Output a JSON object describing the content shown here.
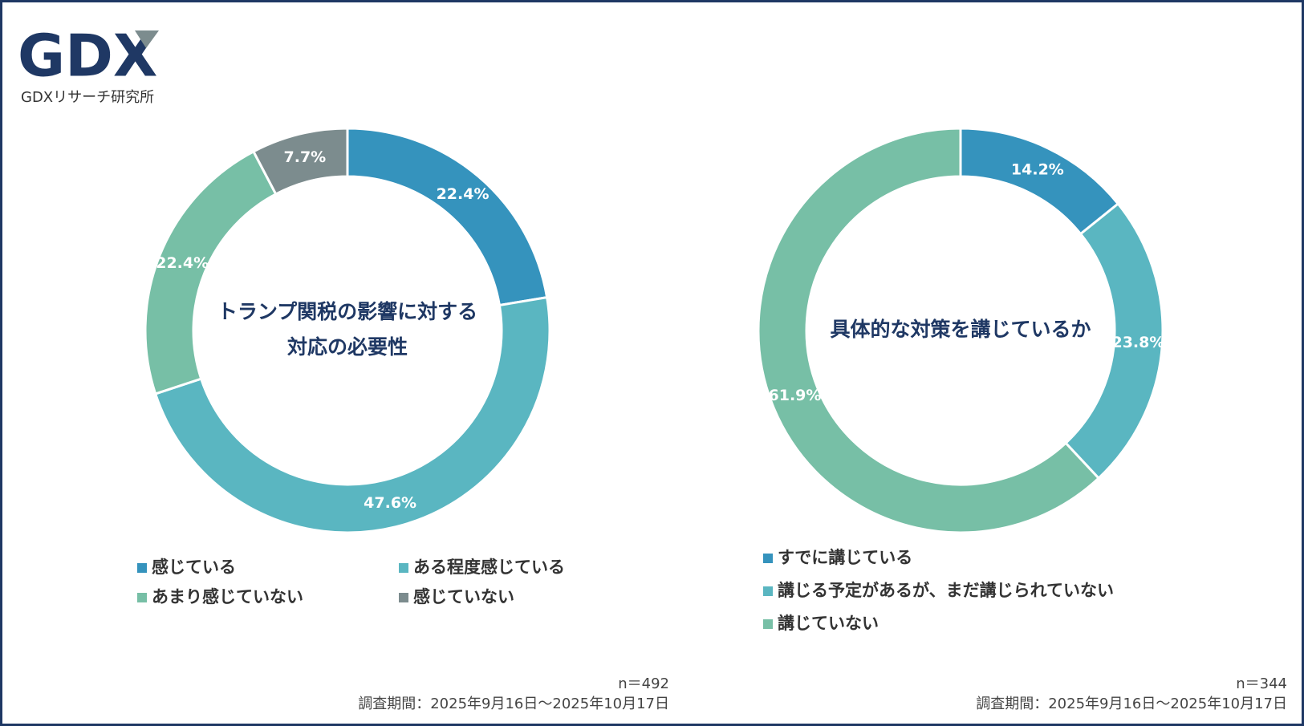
{
  "logo": {
    "mark": "GDX",
    "text": "GDXリサーチ研究所"
  },
  "chart_data": [
    {
      "type": "donut",
      "title": [
        "トランプ関税の影響に対する",
        "対応の必要性"
      ],
      "categories": [
        "感じている",
        "ある程度感じている",
        "あまり感じていない",
        "感じていない"
      ],
      "values": [
        22.4,
        47.6,
        22.4,
        7.7
      ],
      "value_labels": [
        "22.4%",
        "47.6%",
        "22.4%",
        "7.7%"
      ],
      "colors": [
        "#3593bd",
        "#5ab6c1",
        "#77bfa6",
        "#7c8c8e"
      ],
      "n": "n＝492",
      "period": "調査期間：2025年9月16日～2025年10月17日"
    },
    {
      "type": "donut",
      "title": [
        "具体的な対策を講じているか"
      ],
      "categories": [
        "すでに講じている",
        "講じる予定があるが、まだ講じられていない",
        "講じていない"
      ],
      "values": [
        14.2,
        23.8,
        61.9
      ],
      "value_labels": [
        "14.2%",
        "23.8%",
        "61.9%"
      ],
      "colors": [
        "#3593bd",
        "#5ab6c1",
        "#77bfa6"
      ],
      "n": "n＝344",
      "period": "調査期間：2025年9月16日～2025年10月17日"
    }
  ]
}
